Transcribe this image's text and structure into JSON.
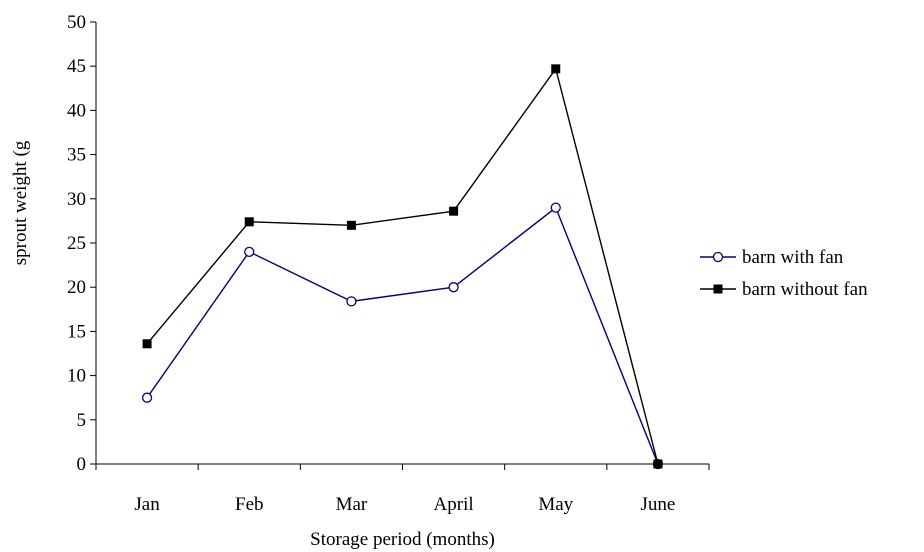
{
  "chart_data": {
    "type": "line",
    "title": "",
    "xlabel": "Storage period (months)",
    "ylabel": "sprout weight (g",
    "categories": [
      "Jan",
      "Feb",
      "Mar",
      "April",
      "May",
      "June"
    ],
    "ylim": [
      0,
      50
    ],
    "yticks": [
      0,
      5,
      10,
      15,
      20,
      25,
      30,
      35,
      40,
      45,
      50
    ],
    "grid": false,
    "legend_position": "right",
    "series": [
      {
        "name": "barn with fan",
        "values": [
          7.5,
          24.0,
          18.4,
          20.0,
          29.0,
          0
        ],
        "color": "#000080",
        "marker": "open-circle"
      },
      {
        "name": "barn without fan",
        "values": [
          13.6,
          27.4,
          27.0,
          28.6,
          44.7,
          0
        ],
        "color": "#000000",
        "marker": "filled-square"
      }
    ]
  }
}
